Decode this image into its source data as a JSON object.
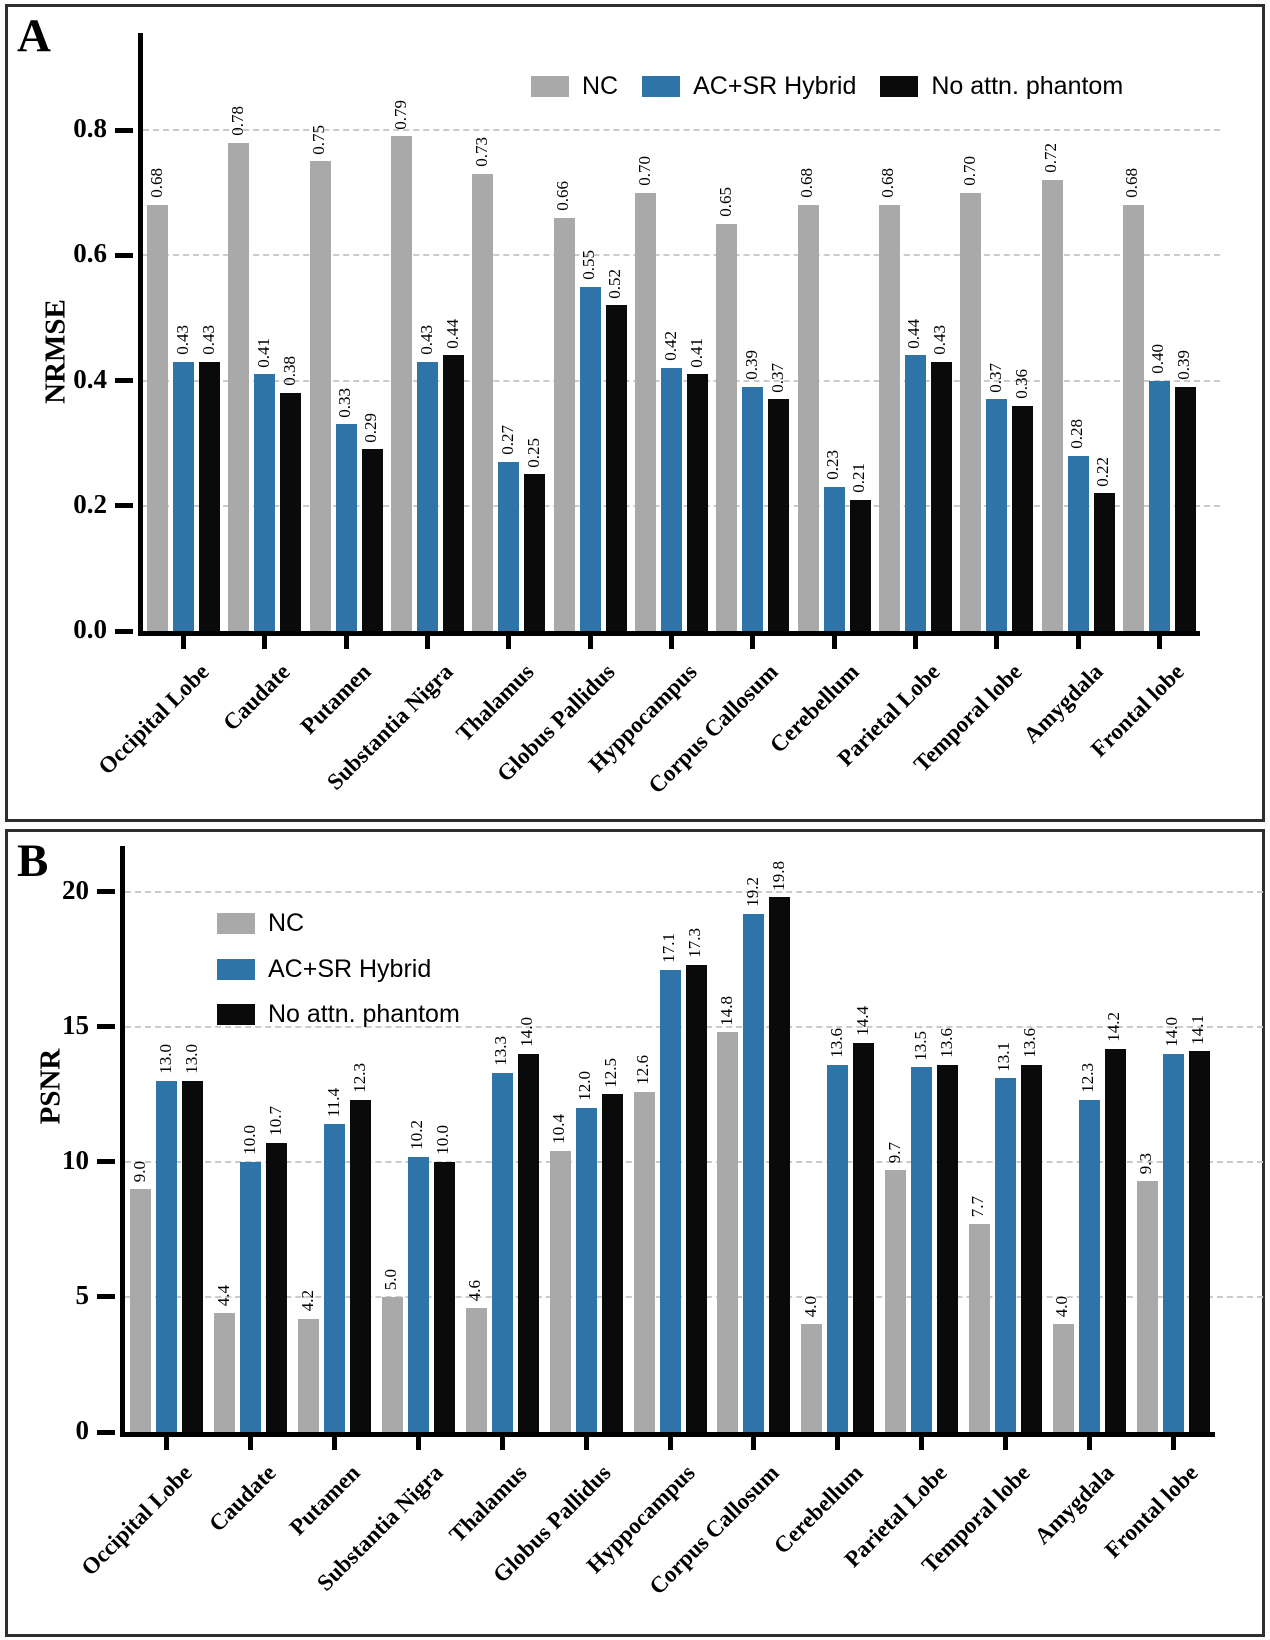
{
  "figure": {
    "description": "Two-panel grouped bar chart comparing NRMSE and PSNR across brain regions"
  },
  "chart_data": [
    {
      "type": "bar",
      "panel": "A",
      "ylabel": "NRMSE",
      "categories": [
        "Occipital Lobe",
        "Caudate",
        "Putamen",
        "Substantia Nigra",
        "Thalamus",
        "Globus Pallidus",
        "Hyppocampus",
        "Corpus Callosum",
        "Cerebellum",
        "Parietal Lobe",
        "Temporal lobe",
        "Amygdala",
        "Frontal lobe"
      ],
      "series": [
        {
          "name": "NC",
          "color": "#a9a9a9",
          "values": [
            0.68,
            0.78,
            0.75,
            0.79,
            0.73,
            0.66,
            0.7,
            0.65,
            0.68,
            0.68,
            0.7,
            0.72,
            0.68
          ]
        },
        {
          "name": "AC+SR Hybrid",
          "color": "#2e74a8",
          "values": [
            0.43,
            0.41,
            0.33,
            0.43,
            0.27,
            0.55,
            0.42,
            0.39,
            0.23,
            0.44,
            0.37,
            0.28,
            0.4
          ]
        },
        {
          "name": "No attn. phantom",
          "color": "#0a0a0a",
          "values": [
            0.43,
            0.38,
            0.29,
            0.44,
            0.25,
            0.52,
            0.41,
            0.37,
            0.21,
            0.43,
            0.36,
            0.22,
            0.39
          ]
        }
      ],
      "yticks": [
        0,
        0.2,
        0.4,
        0.6,
        0.8
      ],
      "ytick_labels": [
        "0.0",
        "0.2",
        "0.4",
        "0.6",
        "0.8"
      ],
      "ylim": [
        0,
        0.955
      ],
      "value_decimals": 2,
      "grid": "dashed-horizontal",
      "legend_position": "top-right-row"
    },
    {
      "type": "bar",
      "panel": "B",
      "ylabel": "PSNR",
      "categories": [
        "Occipital Lobe",
        "Caudate",
        "Putamen",
        "Substantia Nigra",
        "Thalamus",
        "Globus Pallidus",
        "Hyppocampus",
        "Corpus Callosum",
        "Cerebellum",
        "Parietal Lobe",
        "Temporal lobe",
        "Amygdala",
        "Frontal lobe"
      ],
      "series": [
        {
          "name": "NC",
          "color": "#a9a9a9",
          "values": [
            9.0,
            4.4,
            4.2,
            5.0,
            4.6,
            10.4,
            12.6,
            14.8,
            4.0,
            9.7,
            7.7,
            4.0,
            9.3
          ]
        },
        {
          "name": "AC+SR Hybrid",
          "color": "#2e74a8",
          "values": [
            13.0,
            10.0,
            11.4,
            10.2,
            13.3,
            12.0,
            17.1,
            19.2,
            13.6,
            13.5,
            13.1,
            12.3,
            14.0
          ]
        },
        {
          "name": "No attn. phantom",
          "color": "#0a0a0a",
          "values": [
            13.0,
            10.7,
            12.3,
            10.0,
            14.0,
            12.5,
            17.3,
            19.8,
            14.4,
            13.6,
            13.6,
            14.2,
            14.1
          ]
        }
      ],
      "yticks": [
        0,
        5,
        10,
        15,
        20
      ],
      "ytick_labels": [
        "0",
        "5",
        "10",
        "15",
        "20"
      ],
      "ylim": [
        0,
        21.7
      ],
      "value_decimals": 1,
      "grid": "dashed-horizontal",
      "legend_position": "upper-left-column"
    }
  ]
}
